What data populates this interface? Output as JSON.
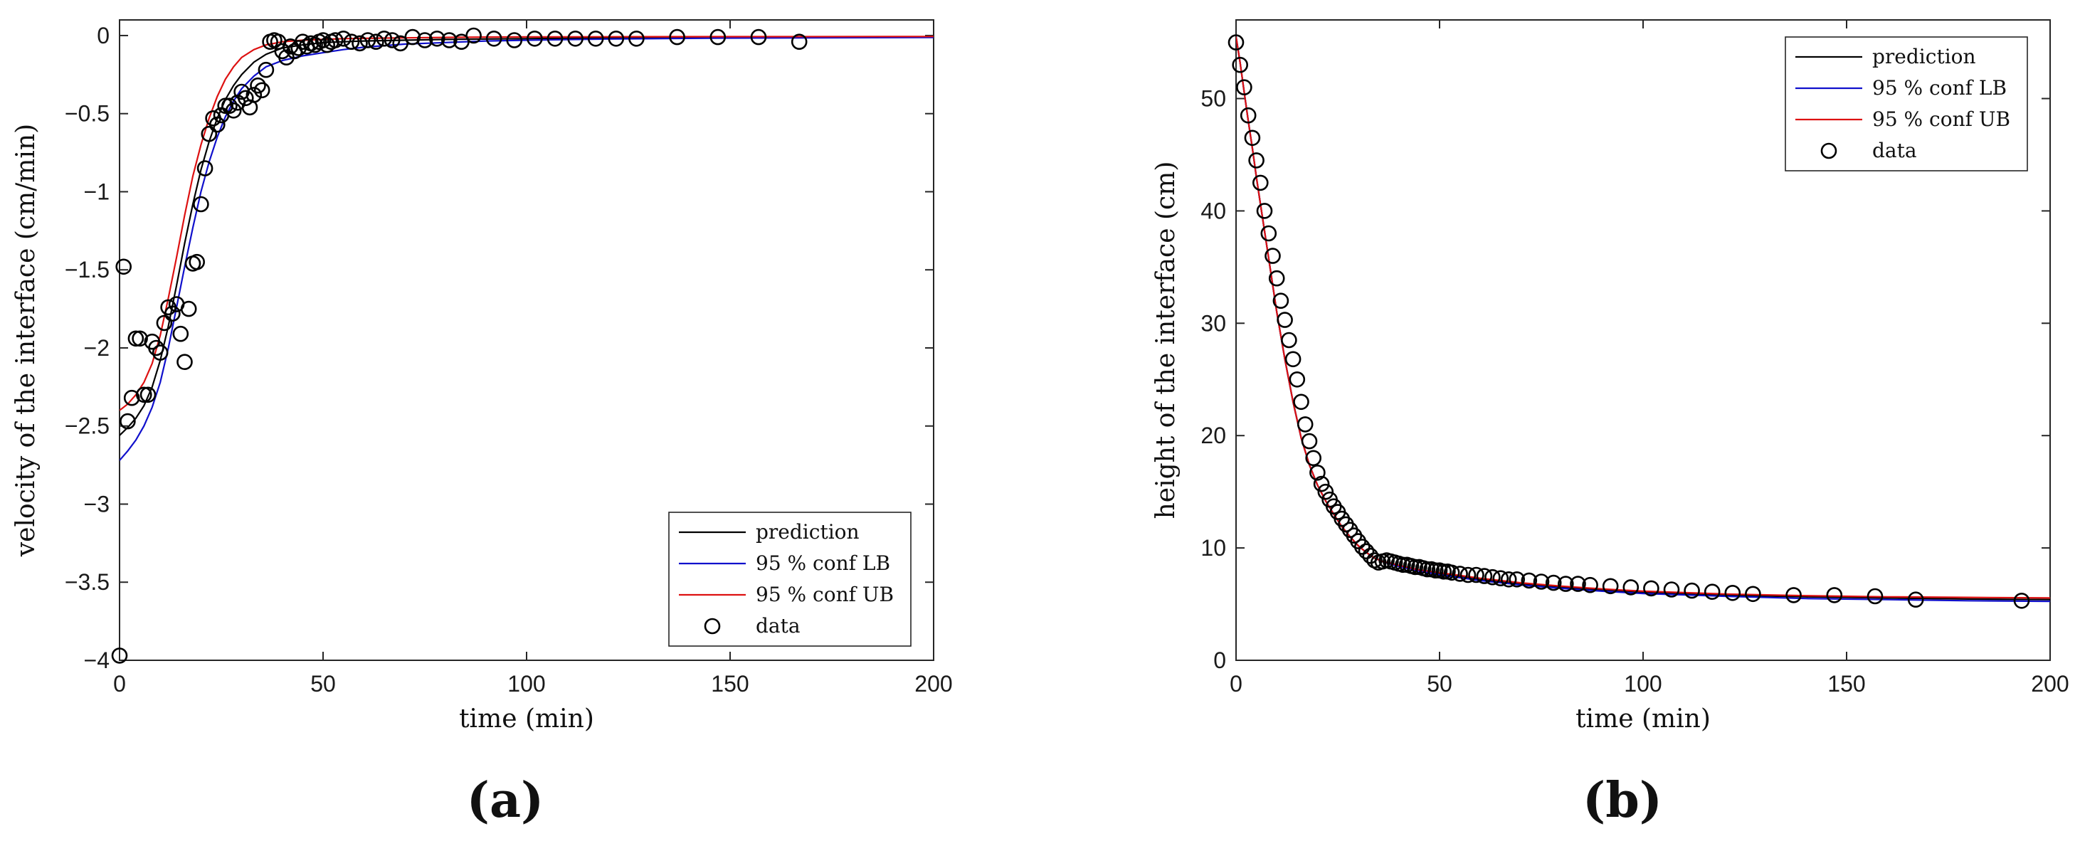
{
  "colors": {
    "prediction": "#000000",
    "lb": "#1010cc",
    "ub": "#dd1111",
    "data": "#000000"
  },
  "chart_data": [
    {
      "panel_label": "(a)",
      "type": "line",
      "xlabel": "time (min)",
      "ylabel": "velocity of the interface (cm/min)",
      "xlim": [
        0,
        200
      ],
      "ylim": [
        -4,
        0.1
      ],
      "xticks": [
        0,
        50,
        100,
        150,
        200
      ],
      "xtick_labels": [
        "0",
        "50",
        "100",
        "150",
        "200"
      ],
      "yticks": [
        0,
        -0.5,
        -1,
        -1.5,
        -2,
        -2.5,
        -3,
        -3.5,
        -4
      ],
      "ytick_labels": [
        "0",
        "−0.5",
        "−1",
        "−1.5",
        "−2",
        "−2.5",
        "−3",
        "−3.5",
        "−4"
      ],
      "legend_position": "bottom-right",
      "series": [
        {
          "name": "prediction",
          "kind": "line",
          "color_key": "prediction",
          "x": [
            0,
            2,
            4,
            6,
            8,
            10,
            12,
            14,
            16,
            18,
            20,
            22,
            24,
            26,
            28,
            30,
            33,
            36,
            40,
            45,
            50,
            55,
            60,
            70,
            80,
            90,
            100,
            120,
            150,
            200
          ],
          "y": [
            -2.56,
            -2.51,
            -2.45,
            -2.37,
            -2.25,
            -2.08,
            -1.86,
            -1.6,
            -1.33,
            -1.08,
            -0.86,
            -0.68,
            -0.53,
            -0.41,
            -0.32,
            -0.25,
            -0.17,
            -0.12,
            -0.08,
            -0.06,
            -0.045,
            -0.04,
            -0.035,
            -0.03,
            -0.025,
            -0.022,
            -0.02,
            -0.015,
            -0.012,
            -0.01
          ]
        },
        {
          "name": "95 % conf LB",
          "kind": "line",
          "color_key": "lb",
          "x": [
            0,
            2,
            4,
            6,
            8,
            10,
            12,
            14,
            16,
            18,
            20,
            22,
            24,
            26,
            28,
            30,
            33,
            36,
            40,
            45,
            50,
            55,
            60,
            70,
            80,
            90,
            100,
            120,
            150,
            200
          ],
          "y": [
            -2.72,
            -2.66,
            -2.59,
            -2.5,
            -2.38,
            -2.22,
            -2.0,
            -1.74,
            -1.48,
            -1.23,
            -1.0,
            -0.81,
            -0.65,
            -0.52,
            -0.42,
            -0.34,
            -0.26,
            -0.2,
            -0.16,
            -0.13,
            -0.11,
            -0.09,
            -0.075,
            -0.055,
            -0.045,
            -0.035,
            -0.03,
            -0.022,
            -0.016,
            -0.012
          ]
        },
        {
          "name": "95 % conf UB",
          "kind": "line",
          "color_key": "ub",
          "x": [
            0,
            2,
            4,
            6,
            8,
            10,
            12,
            14,
            16,
            18,
            20,
            22,
            24,
            26,
            28,
            30,
            33,
            36,
            40,
            45,
            50,
            55,
            60,
            70,
            80,
            90,
            100,
            120,
            150,
            200
          ],
          "y": [
            -2.4,
            -2.36,
            -2.3,
            -2.22,
            -2.1,
            -1.92,
            -1.68,
            -1.42,
            -1.15,
            -0.9,
            -0.7,
            -0.53,
            -0.39,
            -0.28,
            -0.2,
            -0.14,
            -0.09,
            -0.06,
            -0.04,
            -0.03,
            -0.025,
            -0.02,
            -0.018,
            -0.015,
            -0.012,
            -0.01,
            -0.009,
            -0.008,
            -0.007,
            -0.006
          ]
        },
        {
          "name": "data",
          "kind": "scatter",
          "color_key": "data",
          "x": [
            0,
            1,
            2,
            3,
            4,
            5,
            6,
            7,
            8,
            9,
            10,
            11,
            12,
            13,
            14,
            15,
            16,
            17,
            18,
            19,
            20,
            21,
            22,
            23,
            24,
            25,
            26,
            27,
            28,
            29,
            30,
            31,
            32,
            33,
            34,
            35,
            36,
            37,
            38,
            39,
            40,
            41,
            42,
            43,
            44,
            45,
            46,
            47,
            48,
            49,
            50,
            51,
            52,
            53,
            55,
            57,
            59,
            61,
            63,
            65,
            67,
            69,
            72,
            75,
            78,
            81,
            84,
            87,
            92,
            97,
            102,
            107,
            112,
            117,
            122,
            127,
            137,
            147,
            157,
            167
          ],
          "y": [
            -3.97,
            -1.48,
            -2.47,
            -2.32,
            -1.94,
            -1.94,
            -2.3,
            -2.3,
            -1.96,
            -2.0,
            -2.03,
            -1.84,
            -1.74,
            -1.78,
            -1.72,
            -1.91,
            -2.09,
            -1.75,
            -1.46,
            -1.45,
            -1.08,
            -0.85,
            -0.63,
            -0.53,
            -0.57,
            -0.51,
            -0.45,
            -0.45,
            -0.48,
            -0.43,
            -0.36,
            -0.4,
            -0.46,
            -0.38,
            -0.32,
            -0.35,
            -0.22,
            -0.04,
            -0.03,
            -0.04,
            -0.1,
            -0.14,
            -0.07,
            -0.1,
            -0.08,
            -0.04,
            -0.07,
            -0.05,
            -0.06,
            -0.04,
            -0.03,
            -0.06,
            -0.04,
            -0.03,
            -0.02,
            -0.04,
            -0.05,
            -0.03,
            -0.04,
            -0.02,
            -0.03,
            -0.05,
            -0.01,
            -0.03,
            -0.02,
            -0.03,
            -0.04,
            0.0,
            -0.02,
            -0.03,
            -0.02,
            -0.02,
            -0.02,
            -0.02,
            -0.02,
            -0.02,
            -0.01,
            -0.01,
            -0.01,
            -0.04
          ]
        }
      ]
    },
    {
      "panel_label": "(b)",
      "type": "line",
      "xlabel": "time (min)",
      "ylabel": "height of the interface (cm)",
      "xlim": [
        0,
        200
      ],
      "ylim": [
        0,
        57
      ],
      "xticks": [
        0,
        50,
        100,
        150,
        200
      ],
      "xtick_labels": [
        "0",
        "50",
        "100",
        "150",
        "200"
      ],
      "yticks": [
        0,
        10,
        20,
        30,
        40,
        50
      ],
      "ytick_labels": [
        "0",
        "10",
        "20",
        "30",
        "40",
        "50"
      ],
      "legend_position": "top-right",
      "series": [
        {
          "name": "prediction",
          "kind": "line",
          "color_key": "prediction",
          "x": [
            0,
            1,
            2,
            3,
            4,
            5,
            6,
            8,
            10,
            12,
            14,
            16,
            18,
            20,
            22,
            24,
            26,
            28,
            30,
            32,
            34,
            36,
            38,
            40,
            45,
            50,
            60,
            70,
            80,
            90,
            100,
            120,
            140,
            160,
            180,
            200
          ],
          "y": [
            55.5,
            53.2,
            50.6,
            48.0,
            45.6,
            43.0,
            40.6,
            35.8,
            31.0,
            26.8,
            23.0,
            19.8,
            17.4,
            15.6,
            14.2,
            13.0,
            11.9,
            11.0,
            10.2,
            9.6,
            9.1,
            8.8,
            8.6,
            8.4,
            8.0,
            7.7,
            7.2,
            6.8,
            6.5,
            6.25,
            6.05,
            5.8,
            5.65,
            5.55,
            5.45,
            5.4
          ]
        },
        {
          "name": "95 % conf LB",
          "kind": "line",
          "color_key": "lb",
          "x": [
            0,
            1,
            2,
            3,
            4,
            5,
            6,
            8,
            10,
            12,
            14,
            16,
            18,
            20,
            22,
            24,
            26,
            28,
            30,
            32,
            34,
            36,
            38,
            40,
            45,
            50,
            60,
            70,
            80,
            90,
            100,
            120,
            140,
            160,
            180,
            200
          ],
          "y": [
            55.5,
            53.2,
            50.6,
            48.0,
            45.6,
            43.0,
            40.6,
            35.8,
            31.0,
            26.8,
            23.0,
            19.8,
            17.4,
            15.6,
            14.2,
            13.0,
            11.9,
            11.0,
            10.2,
            9.6,
            9.1,
            8.8,
            8.55,
            8.35,
            7.95,
            7.6,
            7.1,
            6.7,
            6.4,
            6.15,
            5.95,
            5.7,
            5.5,
            5.4,
            5.3,
            5.25
          ]
        },
        {
          "name": "95 % conf UB",
          "kind": "line",
          "color_key": "ub",
          "x": [
            0,
            1,
            2,
            3,
            4,
            5,
            6,
            8,
            10,
            12,
            14,
            16,
            18,
            20,
            22,
            24,
            26,
            28,
            30,
            32,
            34,
            36,
            38,
            40,
            45,
            50,
            60,
            70,
            80,
            90,
            100,
            120,
            140,
            160,
            180,
            200
          ],
          "y": [
            55.5,
            53.2,
            50.6,
            48.0,
            45.6,
            43.0,
            40.6,
            35.8,
            31.0,
            26.8,
            23.0,
            19.8,
            17.4,
            15.6,
            14.2,
            13.0,
            11.9,
            11.0,
            10.2,
            9.6,
            9.1,
            8.8,
            8.65,
            8.45,
            8.05,
            7.8,
            7.3,
            6.9,
            6.6,
            6.35,
            6.15,
            5.9,
            5.75,
            5.65,
            5.6,
            5.55
          ]
        },
        {
          "name": "data",
          "kind": "scatter",
          "color_key": "data",
          "x": [
            0,
            1,
            2,
            3,
            4,
            5,
            6,
            7,
            8,
            9,
            10,
            11,
            12,
            13,
            14,
            15,
            16,
            17,
            18,
            19,
            20,
            21,
            22,
            23,
            24,
            25,
            26,
            27,
            28,
            29,
            30,
            31,
            32,
            33,
            34,
            35,
            36,
            37,
            38,
            39,
            40,
            41,
            42,
            43,
            44,
            45,
            46,
            47,
            48,
            49,
            50,
            51,
            52,
            53,
            55,
            57,
            59,
            61,
            63,
            65,
            67,
            69,
            72,
            75,
            78,
            81,
            84,
            87,
            92,
            97,
            102,
            107,
            112,
            117,
            122,
            127,
            137,
            147,
            157,
            167,
            193
          ],
          "y": [
            55,
            53,
            51,
            48.5,
            46.5,
            44.5,
            42.5,
            40,
            38,
            36,
            34,
            32,
            30.3,
            28.5,
            26.8,
            25,
            23,
            21,
            19.5,
            18,
            16.7,
            15.7,
            15,
            14.3,
            13.7,
            13.2,
            12.6,
            12.1,
            11.6,
            11.1,
            10.6,
            10.1,
            9.7,
            9.3,
            8.9,
            8.7,
            8.8,
            8.9,
            8.8,
            8.7,
            8.6,
            8.5,
            8.5,
            8.4,
            8.3,
            8.3,
            8.2,
            8.1,
            8.1,
            8.0,
            8.0,
            7.9,
            7.9,
            7.8,
            7.7,
            7.6,
            7.6,
            7.5,
            7.4,
            7.3,
            7.2,
            7.2,
            7.1,
            7.0,
            6.9,
            6.8,
            6.8,
            6.7,
            6.6,
            6.5,
            6.4,
            6.3,
            6.2,
            6.1,
            6.0,
            5.9,
            5.8,
            5.8,
            5.7,
            5.4,
            5.3
          ]
        }
      ]
    }
  ]
}
